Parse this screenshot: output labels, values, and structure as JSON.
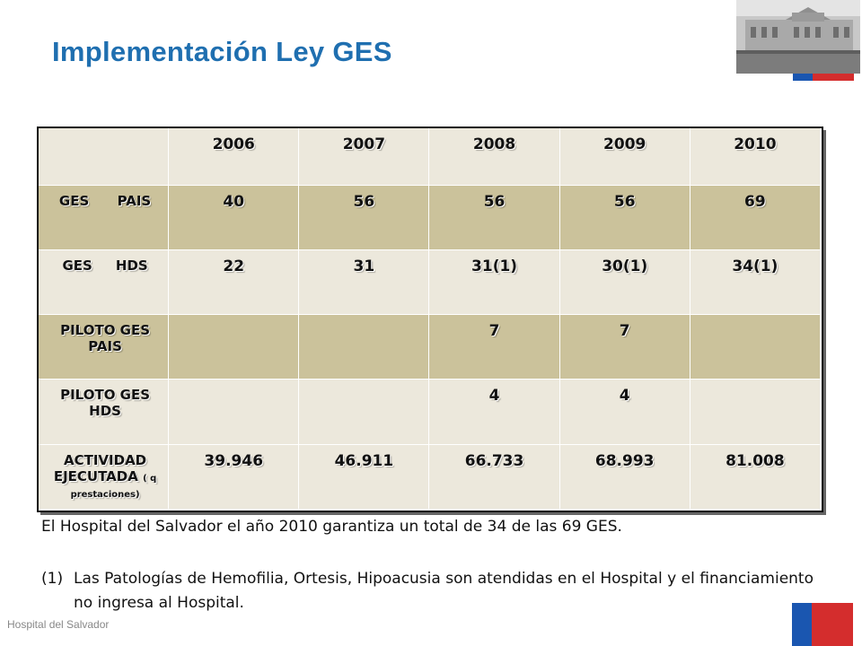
{
  "slide": {
    "title": "Implementación Ley GES",
    "footer": "Hospital del Salvador",
    "colors": {
      "title": "#1f6fb0",
      "row_light": "#ece8dc",
      "row_dark": "#cbc29b",
      "flag_blue": "#1a56b0",
      "flag_red": "#d42d2d"
    }
  },
  "table": {
    "years": [
      "2006",
      "2007",
      "2008",
      "2009",
      "2010"
    ],
    "rows": [
      {
        "label": "GES      PAIS",
        "values": [
          "40",
          "56",
          "56",
          "56",
          "69"
        ]
      },
      {
        "label": "GES     HDS",
        "values": [
          "22",
          "31",
          "31(1)",
          "30(1)",
          "34(1)"
        ]
      },
      {
        "label": "PILOTO GES PAIS",
        "values": [
          "",
          "",
          "7",
          "7",
          ""
        ]
      },
      {
        "label": "PILOTO GES HDS",
        "values": [
          "",
          "",
          "4",
          "4",
          ""
        ]
      },
      {
        "label": "ACTIVIDAD EJECUTADA",
        "sublabel": "( q prestaciones)",
        "values": [
          "39.946",
          "46.911",
          "66.733",
          "68.993",
          "81.008"
        ]
      }
    ]
  },
  "summary": "El Hospital del Salvador el año 2010 garantiza un total de 34 de las 69 GES.",
  "note": {
    "number": "(1)",
    "text": "Las Patologías de Hemofilia, Ortesis, Hipoacusia son atendidas en el Hospital y el financiamiento no ingresa al Hospital."
  }
}
